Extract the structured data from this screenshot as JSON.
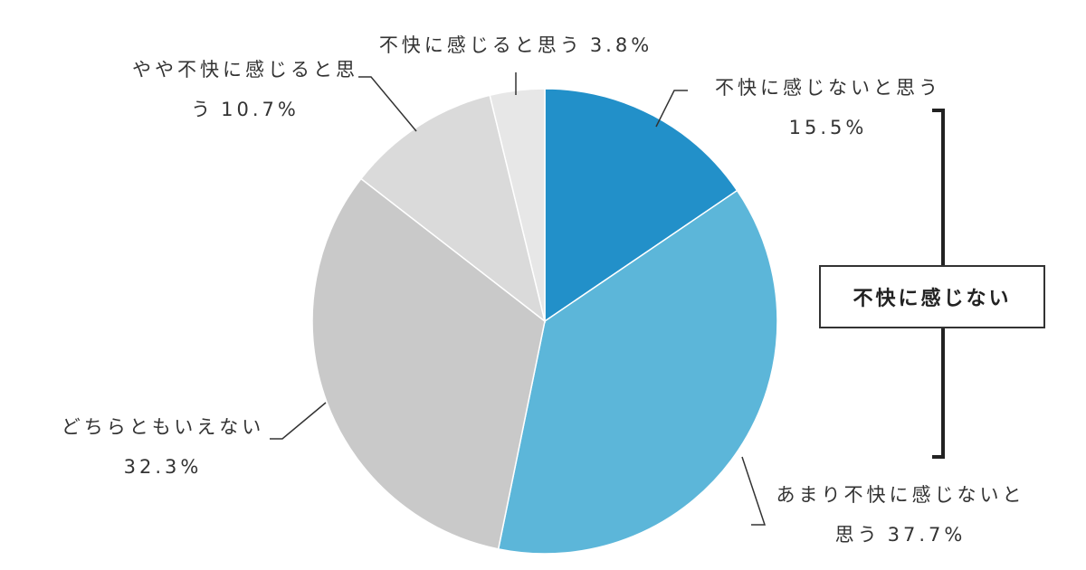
{
  "chart_data": {
    "type": "pie",
    "categories": [
      "不快に感じないと思う",
      "あまり不快に感じないと思う",
      "どちらともいえない",
      "やや不快に感じると思う",
      "不快に感じると思う"
    ],
    "values": [
      15.5,
      37.7,
      32.3,
      10.7,
      3.8
    ],
    "value_labels": [
      "15.5%",
      "37.7%",
      "32.3%",
      "10.7%",
      "3.8%"
    ],
    "colors": [
      "#2290c9",
      "#5cb6d9",
      "#c9c9c9",
      "#dadada",
      "#e7e7e7"
    ],
    "annotation": "不快に感じない"
  }
}
